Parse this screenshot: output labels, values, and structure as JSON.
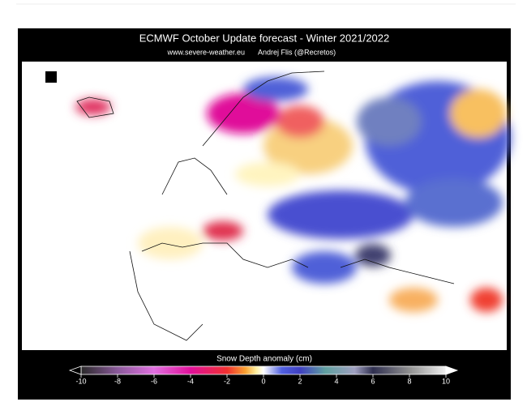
{
  "header": {
    "title": "ECMWF October Update forecast - Winter 2021/2022",
    "subtitle_site": "www.severe-weather.eu",
    "subtitle_author": "Andrej Flis (@Recretos)"
  },
  "colorbar": {
    "label": "Snow Depth anomaly (cm)",
    "lim": [
      -10,
      10
    ],
    "ticks": [
      -10,
      -8,
      -6,
      -4,
      -2,
      0,
      2,
      4,
      6,
      8,
      10
    ]
  }
}
